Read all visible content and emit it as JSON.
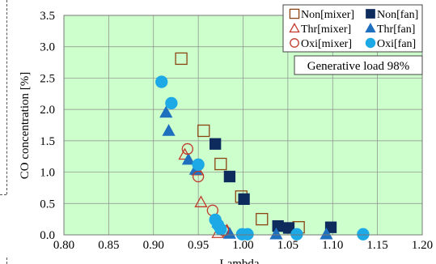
{
  "chart_data": {
    "type": "scatter",
    "title": "",
    "xlabel": "Lambda",
    "ylabel": "CO concentration [%]",
    "xlim": [
      0.8,
      1.2
    ],
    "ylim": [
      0.0,
      3.5
    ],
    "xticks": [
      "0.80",
      "0.85",
      "0.90",
      "0.95",
      "1.00",
      "1.05",
      "1.10",
      "1.15",
      "1.20"
    ],
    "yticks": [
      "0.0",
      "0.5",
      "1.0",
      "1.5",
      "2.0",
      "2.5",
      "3.0",
      "3.5"
    ],
    "grid": true,
    "annotation": "Generative load 98%",
    "legend_position": "top-right",
    "colors": {
      "plot_background": "#ccffcc",
      "mixer": "#c0392b",
      "mixer_square": "#8b4513",
      "fan_square": "#0d2b5c",
      "fan_triangle": "#1f6fbf",
      "fan_circle": "#1ca9e6"
    },
    "series": [
      {
        "name": "Non[mixer]",
        "marker": "square-open",
        "points": [
          [
            0.931,
            2.81
          ],
          [
            0.956,
            1.66
          ],
          [
            0.975,
            1.13
          ],
          [
            0.998,
            0.61
          ],
          [
            1.021,
            0.25
          ],
          [
            1.062,
            0.12
          ]
        ]
      },
      {
        "name": "Non[fan]",
        "marker": "square-filled",
        "points": [
          [
            0.969,
            1.45
          ],
          [
            0.985,
            0.93
          ],
          [
            1.001,
            0.57
          ],
          [
            1.039,
            0.14
          ],
          [
            1.051,
            0.11
          ],
          [
            1.098,
            0.12
          ]
        ]
      },
      {
        "name": "Thr[mixer]",
        "marker": "triangle-open",
        "points": [
          [
            0.935,
            1.28
          ],
          [
            0.949,
            1.03
          ],
          [
            0.953,
            0.52
          ],
          [
            0.972,
            0.03
          ],
          [
            0.982,
            0.07
          ]
        ]
      },
      {
        "name": "Thr[fan]",
        "marker": "triangle-filled",
        "points": [
          [
            0.914,
            1.95
          ],
          [
            0.917,
            1.66
          ],
          [
            0.939,
            1.2
          ],
          [
            0.947,
            1.04
          ],
          [
            0.972,
            0.2
          ],
          [
            0.985,
            0.02
          ],
          [
            1.037,
            0.01
          ],
          [
            1.093,
            0.01
          ]
        ]
      },
      {
        "name": "Oxi[mixer]",
        "marker": "circle-open",
        "points": [
          [
            0.938,
            1.37
          ],
          [
            0.95,
            0.93
          ],
          [
            0.966,
            0.39
          ],
          [
            0.978,
            0.07
          ]
        ]
      },
      {
        "name": "Oxi[fan]",
        "marker": "circle-filled",
        "points": [
          [
            0.909,
            2.44
          ],
          [
            0.92,
            2.1
          ],
          [
            0.95,
            1.12
          ],
          [
            0.969,
            0.24
          ],
          [
            0.972,
            0.16
          ],
          [
            0.975,
            0.09
          ],
          [
            0.999,
            0.01
          ],
          [
            1.005,
            0.01
          ],
          [
            1.06,
            0.01
          ],
          [
            1.134,
            0.01
          ]
        ]
      }
    ]
  }
}
